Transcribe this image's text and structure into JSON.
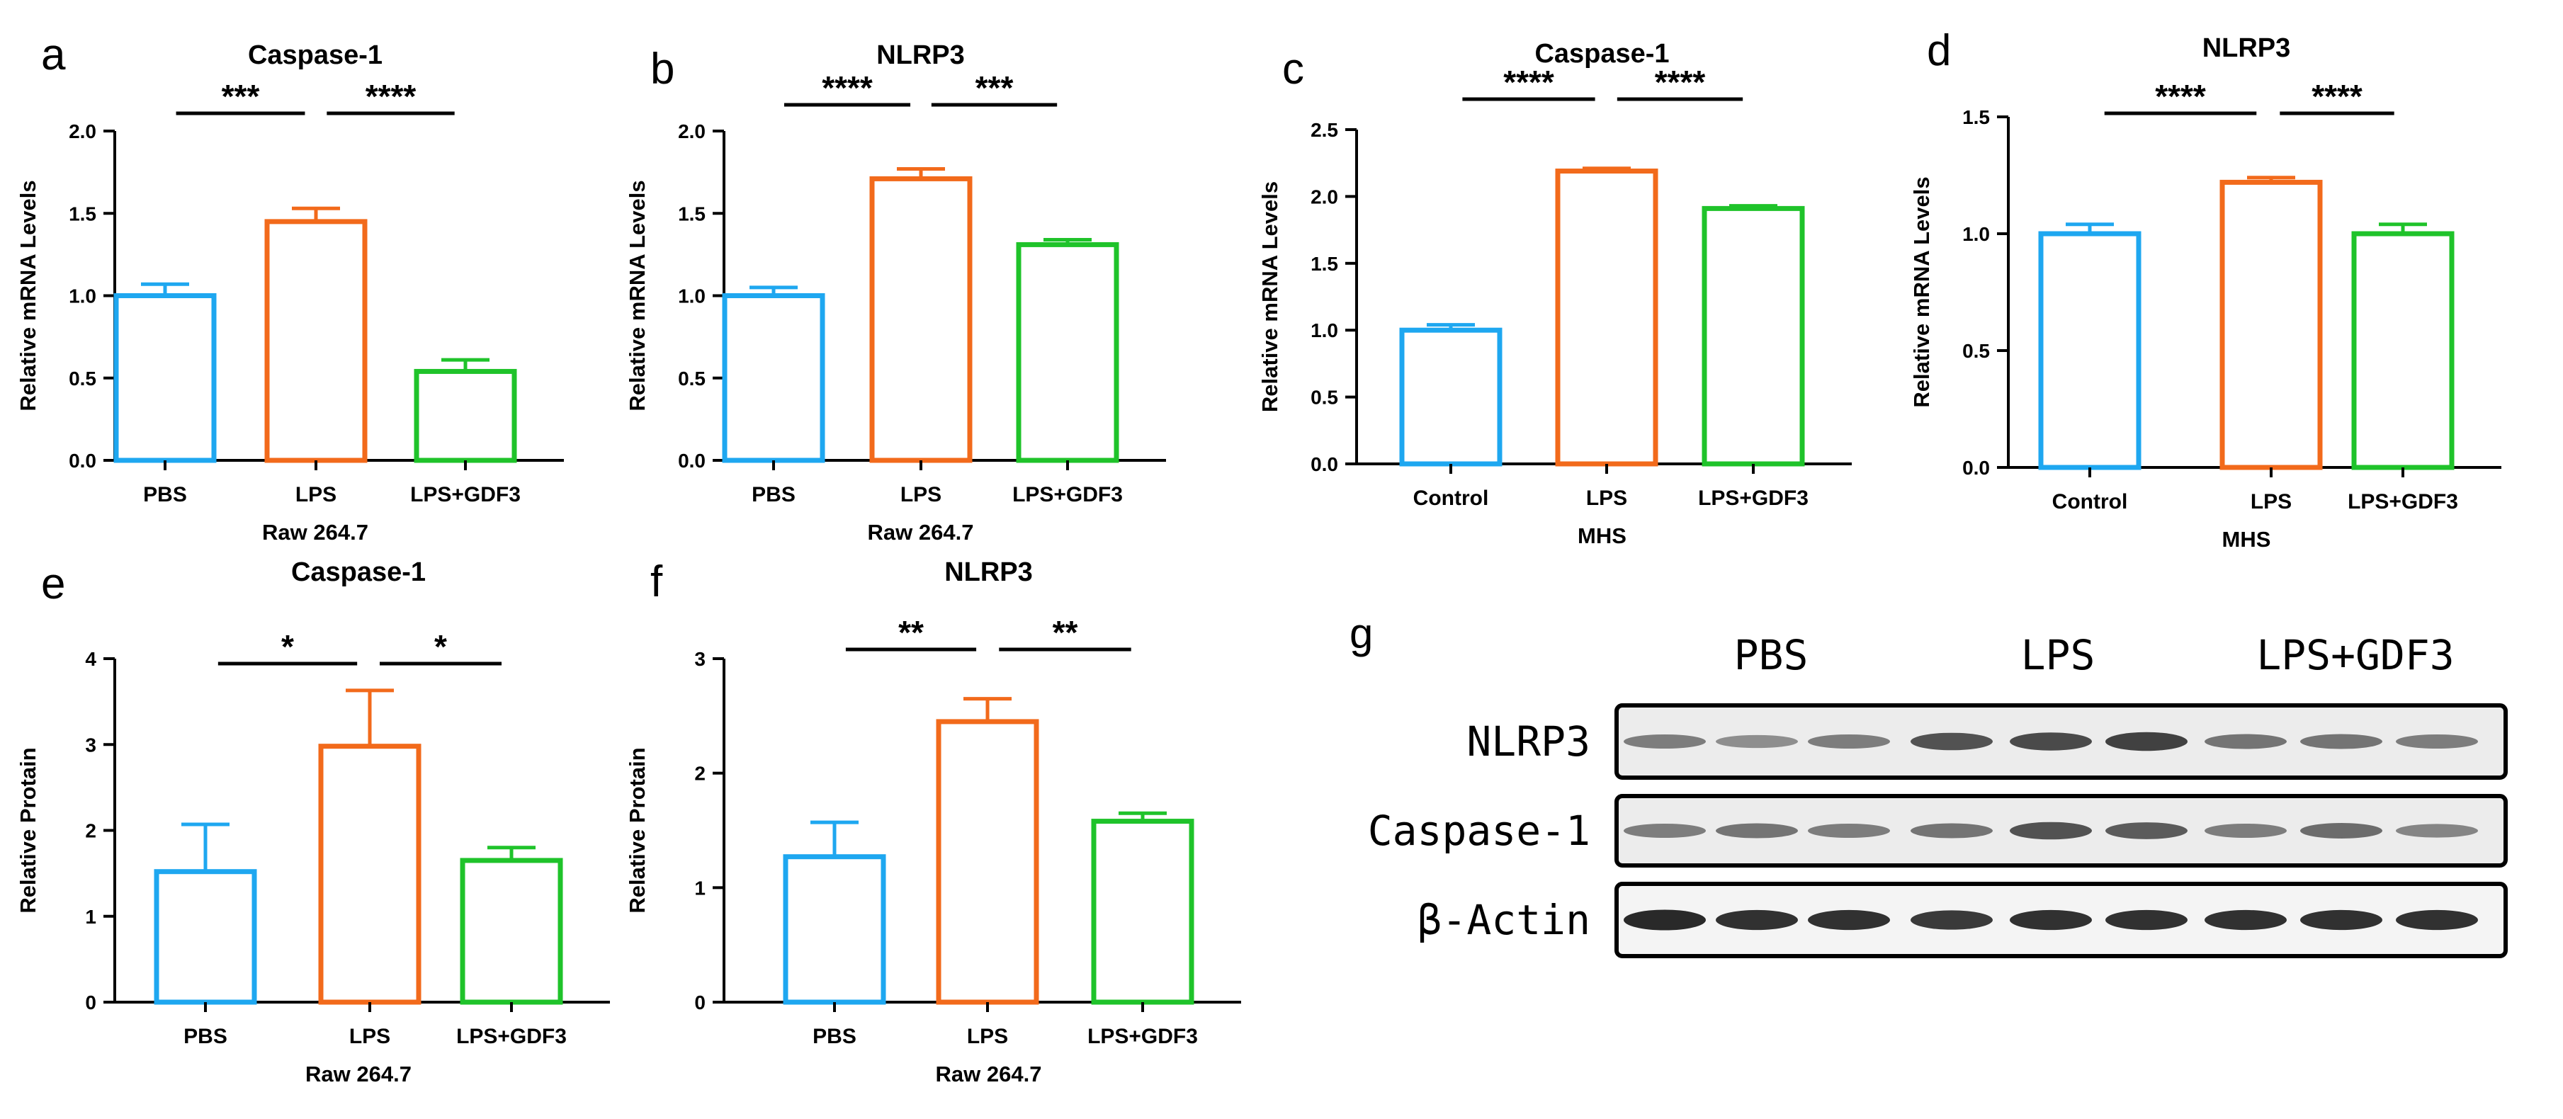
{
  "colors": {
    "blue": "#1ea7f0",
    "orange": "#f26a1b",
    "green": "#1fc32a",
    "axis": "#000000"
  },
  "chart_data": [
    {
      "panel": "a",
      "type": "bar",
      "title": "Caspase-1",
      "ylabel": "Relative mRNA Levels",
      "xlabel": "Raw 264.7",
      "categories": [
        "PBS",
        "LPS",
        "LPS+GDF3"
      ],
      "values": [
        1.0,
        1.45,
        0.54
      ],
      "errors": [
        0.07,
        0.08,
        0.07
      ],
      "bar_colors": [
        "blue",
        "orange",
        "green"
      ],
      "ylim": [
        0,
        2.0
      ],
      "yticks": [
        "0.0",
        "0.5",
        "1.0",
        "1.5",
        "2.0"
      ],
      "significance": [
        {
          "from": 0,
          "to": 1,
          "label": "***"
        },
        {
          "from": 1,
          "to": 2,
          "label": "****"
        }
      ]
    },
    {
      "panel": "b",
      "type": "bar",
      "title": "NLRP3",
      "ylabel": "Relative mRNA Levels",
      "xlabel": "Raw 264.7",
      "categories": [
        "PBS",
        "LPS",
        "LPS+GDF3"
      ],
      "values": [
        1.0,
        1.71,
        1.31
      ],
      "errors": [
        0.05,
        0.06,
        0.03
      ],
      "bar_colors": [
        "blue",
        "orange",
        "green"
      ],
      "ylim": [
        0,
        2.0
      ],
      "yticks": [
        "0.0",
        "0.5",
        "1.0",
        "1.5",
        "2.0"
      ],
      "significance": [
        {
          "from": 0,
          "to": 1,
          "label": "****"
        },
        {
          "from": 1,
          "to": 2,
          "label": "***"
        }
      ]
    },
    {
      "panel": "c",
      "type": "bar",
      "title": "Caspase-1",
      "ylabel": "Relative mRNA Levels",
      "xlabel": "MHS",
      "categories": [
        "Control",
        "LPS",
        "LPS+GDF3"
      ],
      "values": [
        1.0,
        2.19,
        1.91
      ],
      "errors": [
        0.04,
        0.02,
        0.02
      ],
      "bar_colors": [
        "blue",
        "orange",
        "green"
      ],
      "ylim": [
        0,
        2.5
      ],
      "yticks": [
        "0.0",
        "0.5",
        "1.0",
        "1.5",
        "2.0",
        "2.5"
      ],
      "significance": [
        {
          "from": 0,
          "to": 1,
          "label": "****"
        },
        {
          "from": 1,
          "to": 2,
          "label": "****"
        }
      ]
    },
    {
      "panel": "d",
      "type": "bar",
      "title": "NLRP3",
      "ylabel": "Relative mRNA Levels",
      "xlabel": "MHS",
      "categories": [
        "Control",
        "LPS",
        "LPS+GDF3"
      ],
      "values": [
        1.0,
        1.22,
        1.0
      ],
      "errors": [
        0.04,
        0.02,
        0.04
      ],
      "bar_colors": [
        "blue",
        "orange",
        "green"
      ],
      "ylim": [
        0,
        1.5
      ],
      "yticks": [
        "0.0",
        "0.5",
        "1.0",
        "1.5"
      ],
      "significance": [
        {
          "from": 0,
          "to": 1,
          "label": "****"
        },
        {
          "from": 1,
          "to": 2,
          "label": "****"
        }
      ]
    },
    {
      "panel": "e",
      "type": "bar",
      "title": "Caspase-1",
      "ylabel": "Relative Protain",
      "xlabel": "Raw 264.7",
      "categories": [
        "PBS",
        "LPS",
        "LPS+GDF3"
      ],
      "values": [
        1.52,
        2.98,
        1.65
      ],
      "errors": [
        0.55,
        0.65,
        0.15
      ],
      "bar_colors": [
        "blue",
        "orange",
        "green"
      ],
      "ylim": [
        0,
        4
      ],
      "yticks": [
        "0",
        "1",
        "2",
        "3",
        "4"
      ],
      "significance": [
        {
          "from": 0,
          "to": 1,
          "label": "*"
        },
        {
          "from": 1,
          "to": 2,
          "label": "*"
        }
      ]
    },
    {
      "panel": "f",
      "type": "bar",
      "title": "NLRP3",
      "ylabel": "Relative Protain",
      "xlabel": "Raw 264.7",
      "categories": [
        "PBS",
        "LPS",
        "LPS+GDF3"
      ],
      "values": [
        1.27,
        2.45,
        1.58
      ],
      "errors": [
        0.3,
        0.2,
        0.07
      ],
      "bar_colors": [
        "blue",
        "orange",
        "green"
      ],
      "ylim": [
        0,
        3
      ],
      "yticks": [
        "0",
        "1",
        "2",
        "3"
      ],
      "significance": [
        {
          "from": 0,
          "to": 1,
          "label": "**"
        },
        {
          "from": 1,
          "to": 2,
          "label": "**"
        }
      ]
    }
  ],
  "western_blot": {
    "panel": "g",
    "groups": [
      "PBS",
      "LPS",
      "LPS+GDF3"
    ],
    "rows": [
      {
        "label": "NLRP3",
        "intensity": [
          0.45,
          0.35,
          0.45,
          0.7,
          0.75,
          0.8,
          0.5,
          0.5,
          0.45
        ]
      },
      {
        "label": "Caspase-1",
        "intensity": [
          0.45,
          0.5,
          0.45,
          0.5,
          0.7,
          0.65,
          0.45,
          0.55,
          0.4
        ]
      },
      {
        "label": "β-Actin",
        "intensity": [
          0.95,
          0.9,
          0.9,
          0.85,
          0.9,
          0.9,
          0.9,
          0.9,
          0.9
        ]
      }
    ]
  }
}
